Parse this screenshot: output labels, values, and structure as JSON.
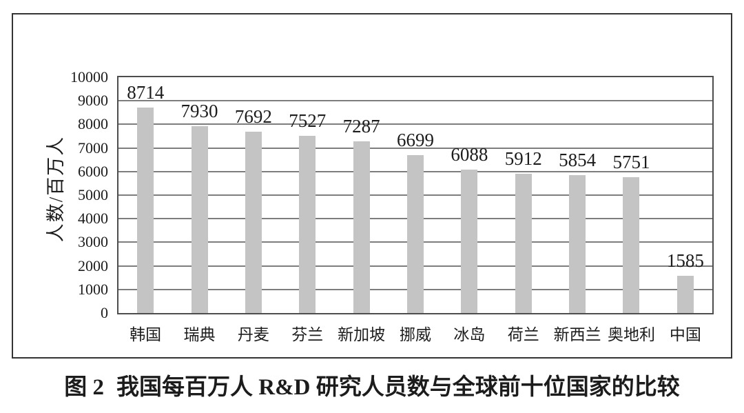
{
  "figure": {
    "caption_label": "图 2",
    "caption_text": "我国每百万人 R&D 研究人员数与全球前十位国家的比较"
  },
  "chart_data": {
    "type": "bar",
    "title": "",
    "categories": [
      "韩国",
      "瑞典",
      "丹麦",
      "芬兰",
      "新加坡",
      "挪威",
      "冰岛",
      "荷兰",
      "新西兰",
      "奥地利",
      "中国"
    ],
    "values": [
      8714,
      7930,
      7692,
      7527,
      7287,
      6699,
      6088,
      5912,
      5854,
      5751,
      1585
    ],
    "xlabel": "",
    "ylabel": "人数/百万人",
    "ylim": [
      0,
      10000
    ],
    "ytick_step": 1000,
    "grid": true,
    "legend": "none",
    "data_labels": true,
    "bar_color": "#c4c4c4",
    "grid_color": "#7d7d7d",
    "text_color": "#1c1c1c"
  }
}
